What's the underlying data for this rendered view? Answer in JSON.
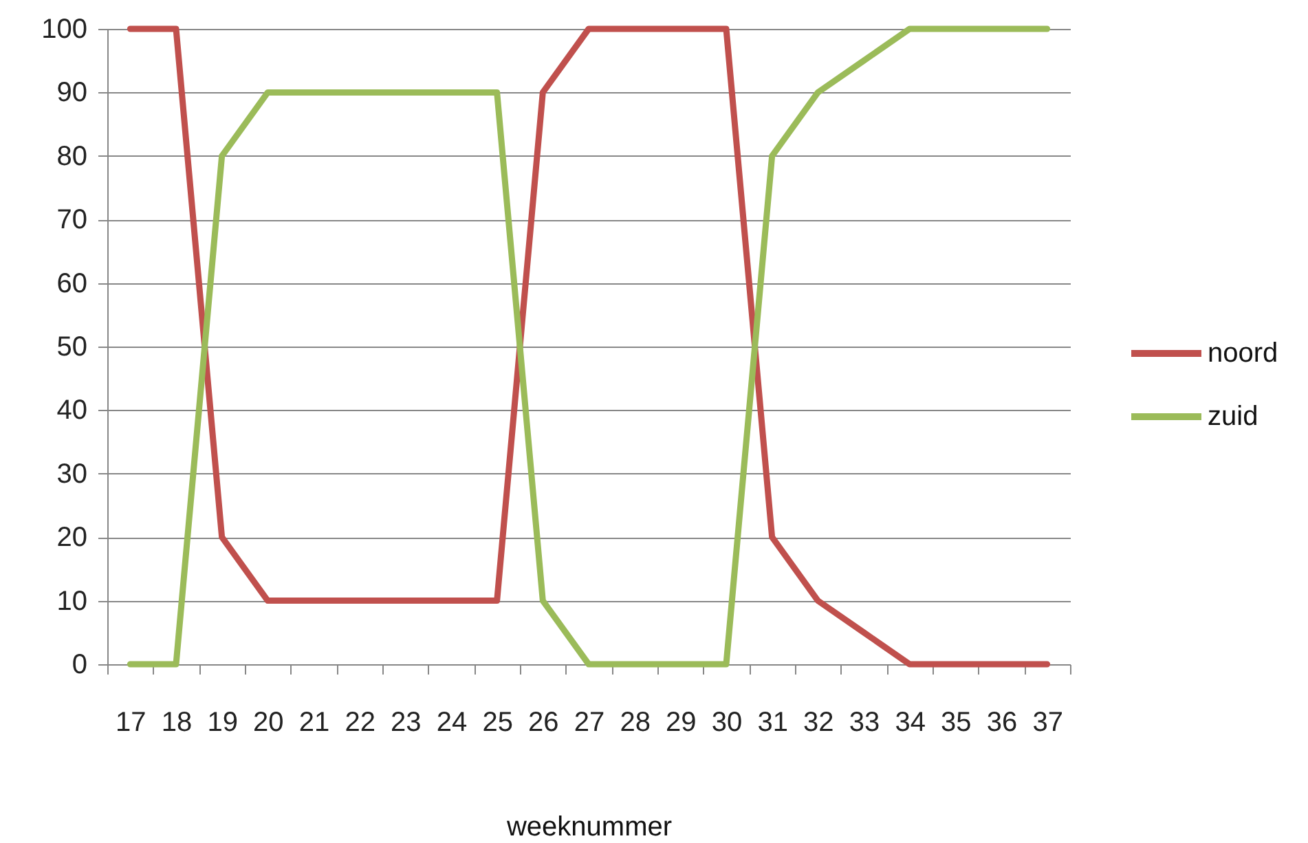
{
  "chart_data": {
    "type": "line",
    "xlabel": "weeknummer",
    "categories": [
      "17",
      "18",
      "19",
      "20",
      "21",
      "22",
      "23",
      "24",
      "25",
      "26",
      "27",
      "28",
      "29",
      "30",
      "31",
      "32",
      "33",
      "34",
      "35",
      "36",
      "37"
    ],
    "series": [
      {
        "name": "noord",
        "color": "#c0504d",
        "values": [
          100,
          100,
          20,
          10,
          10,
          10,
          10,
          10,
          10,
          90,
          100,
          100,
          100,
          100,
          20,
          10,
          5,
          0,
          0,
          0,
          0
        ]
      },
      {
        "name": "zuid",
        "color": "#9bbb59",
        "values": [
          0,
          0,
          80,
          90,
          90,
          90,
          90,
          90,
          90,
          10,
          0,
          0,
          0,
          0,
          80,
          90,
          95,
          100,
          100,
          100,
          100
        ]
      }
    ],
    "ylim": [
      0,
      100
    ],
    "yticks": [
      0,
      10,
      20,
      30,
      40,
      50,
      60,
      70,
      80,
      90,
      100
    ],
    "grid": "y",
    "legend": "right",
    "marker": "none",
    "line_style": "solid"
  }
}
